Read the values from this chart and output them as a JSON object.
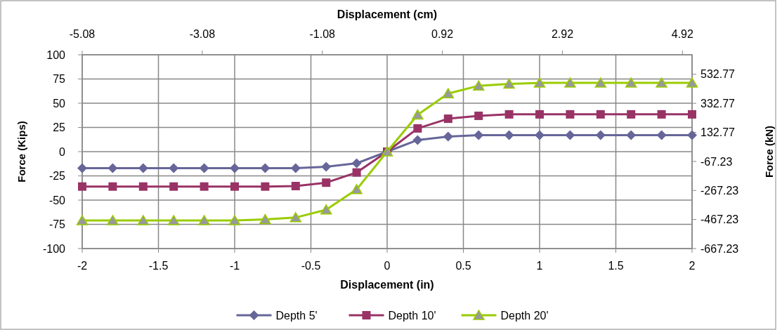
{
  "chart_data": {
    "type": "line",
    "xlabel": "Displacement (in)",
    "ylabel": "Force (Kips)",
    "x2label": "Displacement (cm)",
    "y2label": "Force (kN)",
    "x": [
      -2,
      -1.8,
      -1.6,
      -1.4,
      -1.2,
      -1,
      -0.8,
      -0.6,
      -0.4,
      -0.2,
      0,
      0.2,
      0.4,
      0.6,
      0.8,
      1,
      1.2,
      1.4,
      1.6,
      1.8,
      2
    ],
    "series": [
      {
        "name": "Depth 5'",
        "color": "#666699",
        "marker": "diamond",
        "values": [
          -17,
          -17,
          -17,
          -17,
          -17,
          -17,
          -17,
          -17,
          -15.5,
          -12,
          0,
          12,
          15.5,
          17,
          17,
          17,
          17,
          17,
          17,
          17,
          17
        ]
      },
      {
        "name": "Depth 10'",
        "color": "#993366",
        "marker": "square",
        "values": [
          -36,
          -36,
          -36,
          -36,
          -36,
          -36,
          -36,
          -35.5,
          -32,
          -21.5,
          0,
          24,
          34,
          37,
          38.5,
          38.5,
          38.5,
          38.5,
          38.5,
          38.5,
          38.5
        ]
      },
      {
        "name": "Depth 20'",
        "color": "#99cc00",
        "marker": "triangle",
        "values": [
          -71,
          -71,
          -71,
          -71,
          -71,
          -71,
          -70,
          -68,
          -60,
          -39,
          0,
          38,
          60,
          68,
          70,
          71,
          71,
          71,
          71,
          71,
          71
        ]
      }
    ],
    "xlim": [
      -2,
      2
    ],
    "xticks": [
      -2,
      -1.5,
      -1,
      -0.5,
      0,
      0.5,
      1,
      1.5,
      2
    ],
    "ylim": [
      -100,
      100
    ],
    "yticks": [
      -100,
      -75,
      -50,
      -25,
      0,
      25,
      50,
      75,
      100
    ],
    "x2lim": [
      -5.08,
      5.08
    ],
    "x2ticks": [
      -5.08,
      -3.08,
      -1.08,
      0.92,
      2.92,
      4.92
    ],
    "y2lim": [
      -667.23,
      667.23
    ],
    "y2ticks": [
      -667.23,
      -467.23,
      -267.23,
      -67.23,
      132.77,
      332.77,
      532.77
    ],
    "grid": true,
    "legend": "bottom"
  }
}
